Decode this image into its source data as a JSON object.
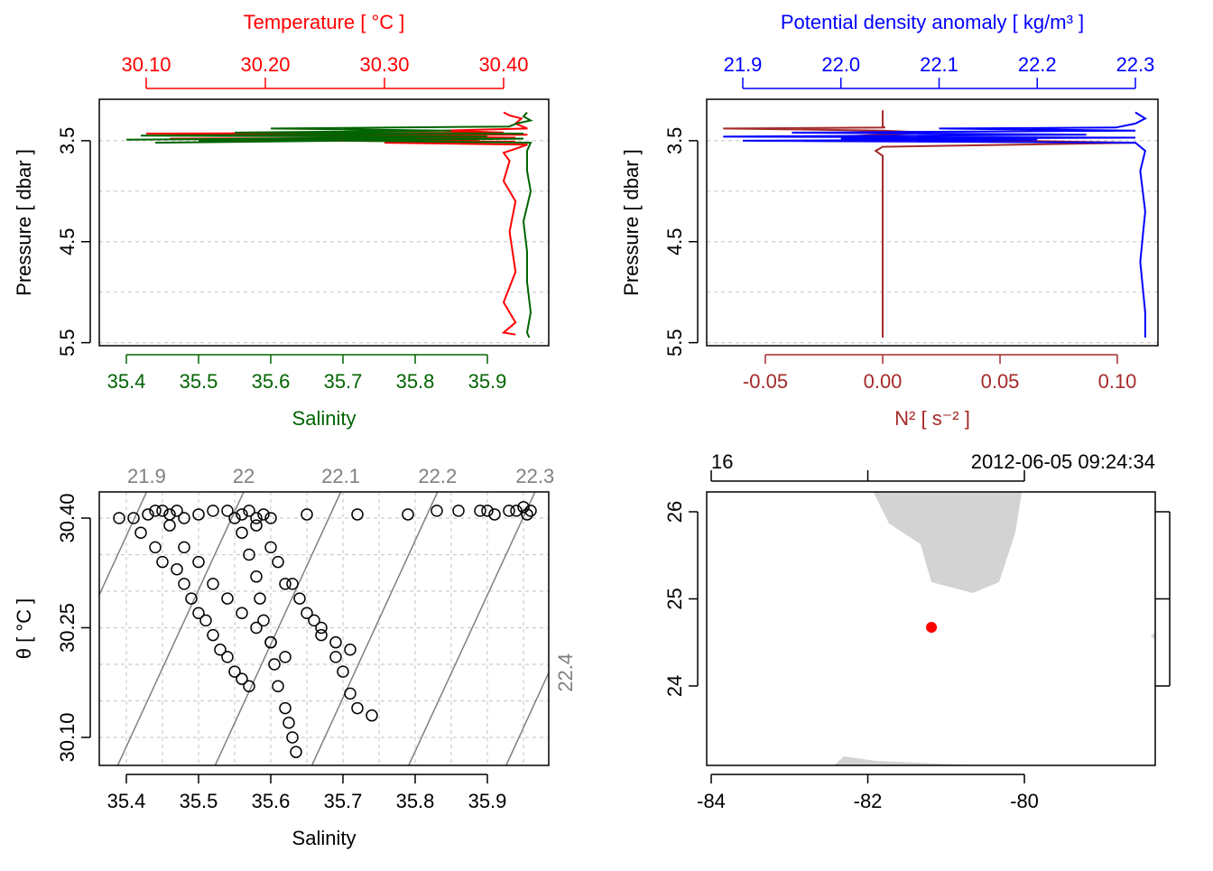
{
  "chart_data": [
    {
      "type": "profile",
      "x2label": "Temperature [ °C ]",
      "xlabel": "Salinity",
      "ylabel": "Pressure [ dbar ]",
      "xlim": [
        35.3625,
        35.985
      ],
      "x2lim": [
        30.0606,
        30.4379
      ],
      "ylim": [
        3.09,
        5.53
      ],
      "y_reversed": true,
      "xticks": [
        35.4,
        35.5,
        35.6,
        35.7,
        35.8,
        35.9
      ],
      "x2ticks": [
        {
          "value": 30.1,
          "label": "30.10"
        },
        {
          "value": 30.2,
          "label": "30.20"
        },
        {
          "value": 30.3,
          "label": "30.30"
        },
        {
          "value": 30.4,
          "label": "30.40"
        }
      ],
      "yticks": [
        3.5,
        4.5,
        5.5
      ],
      "ygrid": [
        3.5,
        4,
        4.5,
        5,
        5.5
      ],
      "grid": true,
      "series": [
        {
          "color": "#ff0000",
          "axis": "x2",
          "x": [
            30.4,
            30.405,
            30.415,
            30.41,
            30.42,
            30.35,
            30.4,
            30.1,
            30.42,
            30.2,
            30.41,
            30.12,
            30.38,
            30.25,
            30.41,
            30.3,
            30.42,
            30.4,
            30.405,
            30.4,
            30.41,
            30.405,
            30.41,
            30.4,
            30.405,
            30.41,
            30.4,
            30.41
          ],
          "y": [
            3.22,
            3.25,
            3.28,
            3.33,
            3.38,
            3.4,
            3.42,
            3.43,
            3.44,
            3.45,
            3.47,
            3.48,
            3.49,
            3.5,
            3.51,
            3.52,
            3.54,
            3.62,
            3.7,
            3.9,
            4.1,
            4.4,
            4.8,
            5.1,
            5.2,
            5.3,
            5.4,
            5.42
          ]
        },
        {
          "color": "#006400",
          "axis": "x",
          "x": [
            35.955,
            35.95,
            35.96,
            35.94,
            35.93,
            35.6,
            35.85,
            35.55,
            35.95,
            35.42,
            35.9,
            35.4,
            35.8,
            35.5,
            35.95,
            35.44,
            35.7,
            35.96,
            35.955,
            35.955,
            35.96,
            35.95,
            35.955,
            35.955,
            35.96,
            35.955,
            35.958
          ],
          "y": [
            3.22,
            3.26,
            3.3,
            3.33,
            3.36,
            3.38,
            3.4,
            3.42,
            3.43,
            3.45,
            3.46,
            3.49,
            3.47,
            3.5,
            3.48,
            3.52,
            3.5,
            3.52,
            3.6,
            3.8,
            4.0,
            4.3,
            4.6,
            4.9,
            5.2,
            5.4,
            5.45
          ]
        }
      ]
    },
    {
      "type": "profile",
      "x2label": "Potential density anomaly [ kg/m³ ]",
      "xlabel": "N² [ s⁻² ]",
      "ylabel": "Pressure [ dbar ]",
      "xlim": [
        -0.075,
        0.1173
      ],
      "x2lim": [
        21.8632,
        22.323
      ],
      "ylim": [
        3.09,
        5.53
      ],
      "y_reversed": true,
      "xticks": [
        -0.05,
        {
          "value": 0,
          "label": "0.00"
        },
        0.05,
        {
          "value": 0.1,
          "label": "0.10"
        }
      ],
      "x2ticks": [
        21.9,
        {
          "value": 22,
          "label": "22.0"
        },
        22.1,
        22.2,
        22.3
      ],
      "yticks": [
        3.5,
        4.5,
        5.5
      ],
      "ygrid": [
        3.5,
        4,
        4.5,
        5,
        5.5
      ],
      "grid": true,
      "series": [
        {
          "color": "#a52a2a",
          "axis": "x",
          "x": [
            0,
            0,
            0,
            0.001,
            -0.068,
            0,
            0.02,
            0,
            -0.02,
            0,
            0.108,
            0,
            -0.003,
            0,
            0,
            0,
            0
          ],
          "y": [
            3.2,
            3.3,
            3.36,
            3.37,
            3.38,
            3.4,
            3.42,
            3.44,
            3.46,
            3.48,
            3.52,
            3.56,
            3.6,
            3.65,
            4.5,
            5.3,
            5.45
          ]
        },
        {
          "color": "#0000ff",
          "axis": "x2",
          "x": [
            22.3,
            22.31,
            22.3,
            22.28,
            22.1,
            22.3,
            21.95,
            22.25,
            21.88,
            22.3,
            22.0,
            22.2,
            21.9,
            22.3,
            22.31,
            22.305,
            22.31,
            22.305,
            22.31,
            22.31
          ],
          "y": [
            3.22,
            3.28,
            3.33,
            3.37,
            3.38,
            3.4,
            3.42,
            3.44,
            3.46,
            3.47,
            3.48,
            3.49,
            3.5,
            3.52,
            3.6,
            3.8,
            4.2,
            4.7,
            5.2,
            5.45
          ]
        }
      ]
    },
    {
      "type": "ts",
      "xlabel": "Salinity",
      "ylabel": "θ [ °C ]",
      "xlim": [
        35.3625,
        35.985
      ],
      "ylim": [
        30.0617,
        30.4358
      ],
      "xticks": [
        35.4,
        35.5,
        35.6,
        35.7,
        35.8,
        35.9
      ],
      "yticks": [
        {
          "value": 30.1,
          "label": "30.10"
        },
        30.25,
        {
          "value": 30.4,
          "label": "30.40"
        }
      ],
      "xgrid": [
        35.4,
        35.45,
        35.5,
        35.55,
        35.6,
        35.65,
        35.7,
        35.75,
        35.8,
        35.85,
        35.9,
        35.95
      ],
      "ygrid": [
        30.1,
        30.15,
        30.2,
        30.25,
        30.3,
        30.35,
        30.4
      ],
      "grid": true,
      "isopycnals": {
        "color": "#808080",
        "levels": [
          21.9,
          22,
          22.1,
          22.2,
          22.3,
          22.4
        ],
        "x_bottom": [
          35.254,
          35.388,
          35.523,
          35.657,
          35.791,
          35.926
        ],
        "x_top": [
          35.428,
          35.5625,
          35.697,
          35.831,
          35.966,
          36.1
        ]
      },
      "points": {
        "color": "#000000",
        "x": [
          35.39,
          35.41,
          35.43,
          35.44,
          35.45,
          35.46,
          35.47,
          35.48,
          35.5,
          35.52,
          35.54,
          35.55,
          35.56,
          35.57,
          35.58,
          35.59,
          35.6,
          35.65,
          35.72,
          35.79,
          35.83,
          35.86,
          35.89,
          35.9,
          35.91,
          35.93,
          35.94,
          35.95,
          35.955,
          35.96,
          35.42,
          35.44,
          35.45,
          35.47,
          35.48,
          35.49,
          35.5,
          35.51,
          35.52,
          35.53,
          35.54,
          35.55,
          35.56,
          35.57,
          35.46,
          35.48,
          35.5,
          35.52,
          35.54,
          35.56,
          35.58,
          35.6,
          35.62,
          35.56,
          35.57,
          35.58,
          35.585,
          35.59,
          35.6,
          35.605,
          35.61,
          35.62,
          35.625,
          35.63,
          35.635,
          35.58,
          35.6,
          35.61,
          35.63,
          35.64,
          35.66,
          35.67,
          35.69,
          35.7,
          35.71,
          35.72,
          35.74,
          35.62,
          35.65,
          35.67,
          35.69,
          35.71
        ],
        "y": [
          30.4,
          30.4,
          30.405,
          30.41,
          30.41,
          30.405,
          30.41,
          30.4,
          30.405,
          30.41,
          30.41,
          30.4,
          30.405,
          30.41,
          30.4,
          30.405,
          30.4,
          30.405,
          30.405,
          30.405,
          30.41,
          30.41,
          30.41,
          30.41,
          30.405,
          30.41,
          30.41,
          30.415,
          30.405,
          30.41,
          30.38,
          30.36,
          30.34,
          30.33,
          30.31,
          30.29,
          30.27,
          30.26,
          30.24,
          30.22,
          30.21,
          30.19,
          30.18,
          30.17,
          30.39,
          30.36,
          30.34,
          30.31,
          30.29,
          30.27,
          30.25,
          30.23,
          30.21,
          30.38,
          30.35,
          30.32,
          30.29,
          30.26,
          30.23,
          30.2,
          30.17,
          30.14,
          30.12,
          30.1,
          30.08,
          30.39,
          30.36,
          30.34,
          30.31,
          30.29,
          30.26,
          30.24,
          30.21,
          30.19,
          30.16,
          30.14,
          30.13,
          30.31,
          30.27,
          30.25,
          30.23,
          30.22
        ]
      }
    },
    {
      "type": "map",
      "station_label": "16",
      "time_label": "2012-06-05 09:24:34",
      "xlim": [
        -84.058,
        -78.329
      ],
      "ylim": [
        23.088,
        26.228
      ],
      "xticks": [
        -84,
        -82,
        -80
      ],
      "yticks": [
        24,
        25,
        26
      ],
      "station": {
        "lon": -81.187,
        "lat": 24.674,
        "color": "#ff0000"
      }
    }
  ]
}
